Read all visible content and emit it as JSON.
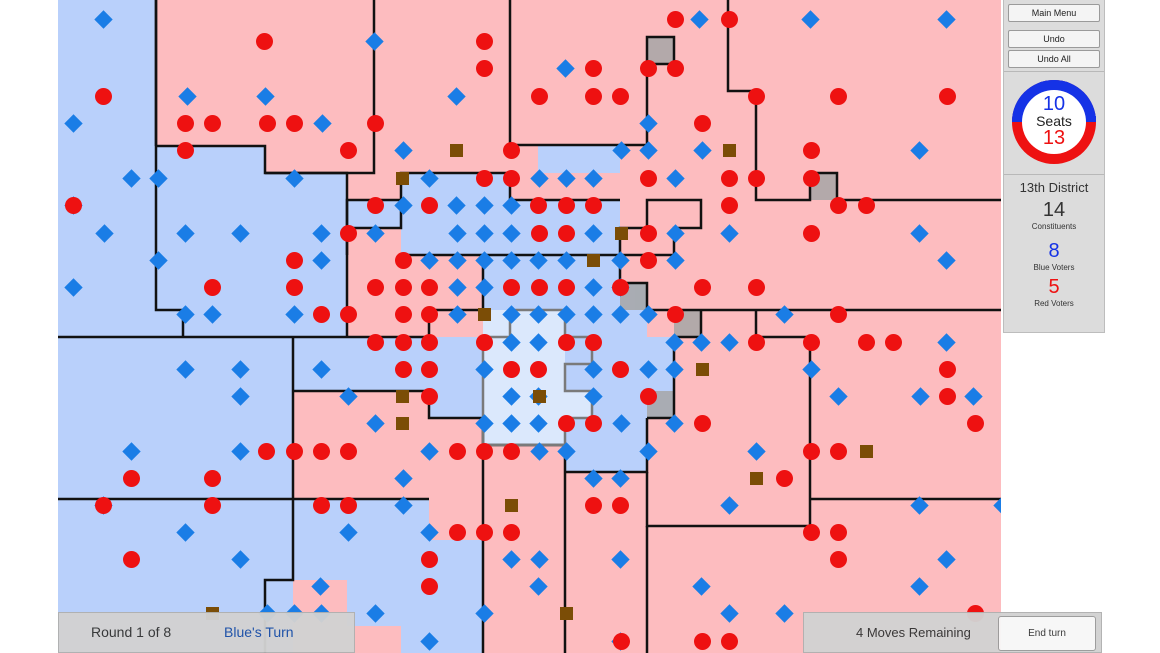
{
  "menu": {
    "main_menu": "Main Menu",
    "undo": "Undo",
    "undo_all": "Undo All"
  },
  "seats": {
    "blue": "10",
    "label": "Seats",
    "red": "13"
  },
  "district": {
    "name": "13th District",
    "constituents": "14",
    "constituents_label": "Constituents",
    "blue_voters": "8",
    "blue_label": "Blue Voters",
    "red_voters": "5",
    "red_label": "Red Voters"
  },
  "status": {
    "round": "Round 1 of 8",
    "turn": "Blue's Turn"
  },
  "moves": {
    "remaining": "4 Moves Remaining",
    "end_turn": "End turn"
  },
  "colors": {
    "blue": "#1a7de6",
    "red": "#ee1111",
    "blue_region": "#b9d0fb",
    "red_region": "#fdbcbf",
    "neutral": "#7b4d06"
  }
}
